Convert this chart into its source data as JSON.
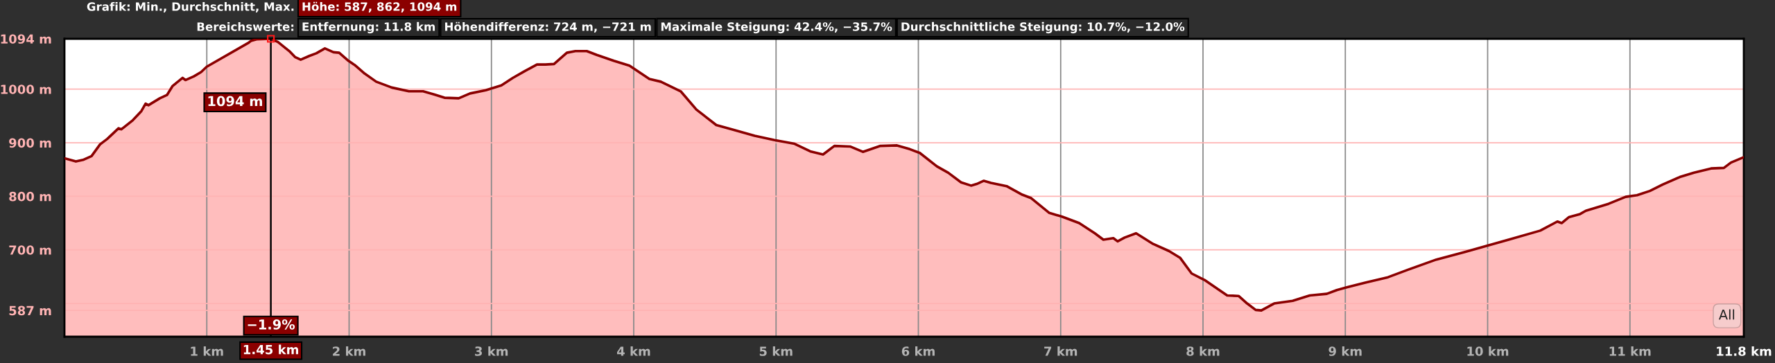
{
  "chart_data": {
    "type": "area",
    "title": "Grafik: Min., Durchschnitt, Max.",
    "subtitle": "Bereichswerte:",
    "x": [
      0,
      0.08,
      0.13,
      0.19,
      0.25,
      0.3,
      0.38,
      0.4,
      0.48,
      0.54,
      0.57,
      0.59,
      0.67,
      0.72,
      0.76,
      0.83,
      0.85,
      0.91,
      0.96,
      1.0,
      1.29,
      1.31,
      1.35,
      1.45,
      1.5,
      1.58,
      1.62,
      1.66,
      1.72,
      1.77,
      1.83,
      1.89,
      1.93,
      1.99,
      2.04,
      2.11,
      2.19,
      2.3,
      2.42,
      2.52,
      2.6,
      2.67,
      2.77,
      2.85,
      2.96,
      3.07,
      3.15,
      3.23,
      3.32,
      3.38,
      3.44,
      3.53,
      3.59,
      3.67,
      3.74,
      3.86,
      3.97,
      4.11,
      4.19,
      4.33,
      4.44,
      4.58,
      4.69,
      4.85,
      4.99,
      5.13,
      5.24,
      5.33,
      5.41,
      5.52,
      5.61,
      5.73,
      5.85,
      5.94,
      6.01,
      6.13,
      6.21,
      6.3,
      6.37,
      6.41,
      6.46,
      6.51,
      6.62,
      6.73,
      6.79,
      6.92,
      7.01,
      7.13,
      7.24,
      7.3,
      7.37,
      7.4,
      7.45,
      7.53,
      7.65,
      7.76,
      7.84,
      7.92,
      8.01,
      8.12,
      8.17,
      8.25,
      8.31,
      8.37,
      8.41,
      8.5,
      8.63,
      8.75,
      8.87,
      8.94,
      9.01,
      9.14,
      9.3,
      9.44,
      9.64,
      9.84,
      10.0,
      10.16,
      10.37,
      10.49,
      10.52,
      10.57,
      10.65,
      10.69,
      10.85,
      10.97,
      11.05,
      11.14,
      11.23,
      11.35,
      11.45,
      11.57,
      11.66,
      11.71,
      11.8
    ],
    "series": [
      {
        "color": "#8b0000",
        "values": [
          871,
          865,
          868,
          875,
          897,
          907,
          927,
          925,
          942,
          959,
          973,
          970,
          983,
          989,
          1006,
          1021,
          1017,
          1024,
          1032,
          1042,
          1086,
          1090,
          1093,
          1094,
          1088,
          1071,
          1060,
          1055,
          1062,
          1067,
          1076,
          1069,
          1068,
          1054,
          1045,
          1029,
          1014,
          1003,
          996,
          996,
          990,
          984,
          983,
          992,
          998,
          1007,
          1021,
          1033,
          1046,
          1046,
          1047,
          1068,
          1071,
          1071,
          1064,
          1053,
          1044,
          1019,
          1014,
          996,
          962,
          933,
          925,
          913,
          905,
          898,
          884,
          878,
          894,
          893,
          883,
          894,
          895,
          888,
          881,
          856,
          844,
          826,
          820,
          823,
          829,
          825,
          819,
          803,
          797,
          769,
          762,
          750,
          731,
          719,
          722,
          716,
          723,
          731,
          711,
          698,
          685,
          656,
          644,
          624,
          615,
          614,
          600,
          588,
          587,
          600,
          605,
          615,
          618,
          625,
          630,
          639,
          649,
          663,
          682,
          696,
          708,
          720,
          736,
          753,
          750,
          761,
          767,
          773,
          786,
          799,
          802,
          810,
          822,
          836,
          844,
          852,
          853,
          863,
          873
        ]
      }
    ],
    "xlim": [
      0,
      11.8
    ],
    "ylim": [
      538,
      1094
    ],
    "xticks": [
      {
        "value": 1,
        "label": "1 km"
      },
      {
        "value": 2,
        "label": "2 km"
      },
      {
        "value": 3,
        "label": "3 km"
      },
      {
        "value": 4,
        "label": "4 km"
      },
      {
        "value": 5,
        "label": "5 km"
      },
      {
        "value": 6,
        "label": "6 km"
      },
      {
        "value": 7,
        "label": "7 km"
      },
      {
        "value": 8,
        "label": "8 km"
      },
      {
        "value": 9,
        "label": "9 km"
      },
      {
        "value": 10,
        "label": "10 km"
      },
      {
        "value": 11,
        "label": "11 km"
      },
      {
        "value": 11.8,
        "label": "11.8 km"
      }
    ],
    "yticks": [
      {
        "value": 587,
        "label": "587 m"
      },
      {
        "value": 600,
        "label": null
      },
      {
        "value": 700,
        "label": "700 m"
      },
      {
        "value": 800,
        "label": "800 m"
      },
      {
        "value": 900,
        "label": "900 m"
      },
      {
        "value": 1000,
        "label": "1000 m"
      },
      {
        "value": 1094,
        "label": "1094 m"
      }
    ],
    "grid": true,
    "ref_lines": [
      {
        "axis": "x",
        "value": 1.45,
        "label": "1.45 km",
        "color": "#000000"
      }
    ],
    "annotations": [
      "Höhe: 587, 862, 1094 m",
      "Entfernung: 11.8 km",
      "Höhendifferenz: 724 m, −721 m",
      "Maximale Steigung: 42.4%, −35.7%",
      "Durchschnittliche Steigung: 10.7%, −12.0%",
      "1094 m",
      "−1.9%",
      "All"
    ]
  }
}
